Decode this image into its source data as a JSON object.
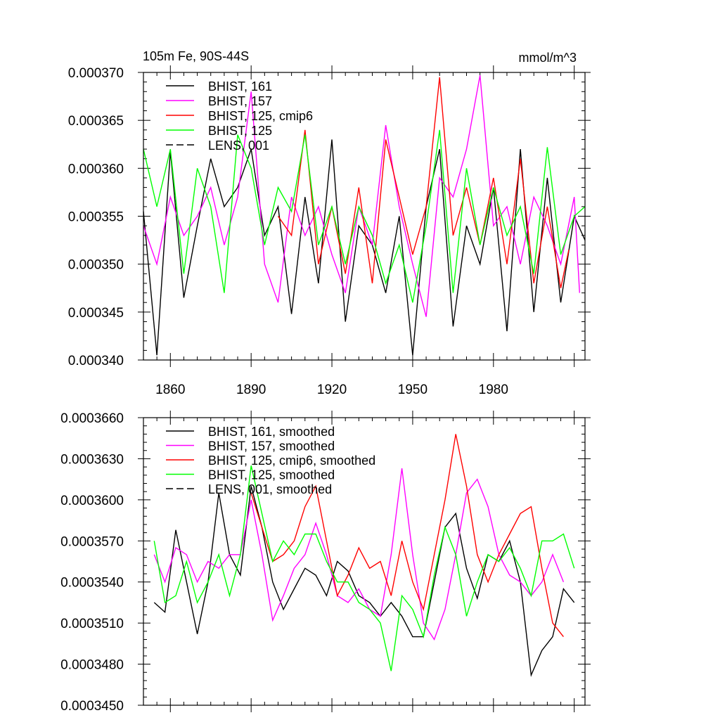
{
  "chart_data": [
    {
      "type": "line",
      "title": "105m Fe, 90S-44S",
      "units": "mmol/m^3",
      "xlabel": "",
      "ylabel": "",
      "xlim": [
        1850,
        2014
      ],
      "ylim": [
        0.00034,
        0.00037
      ],
      "x_ticks": [
        1860,
        1890,
        1920,
        1950,
        1980
      ],
      "x_tick_labels": [
        "1860",
        "1890",
        "1920",
        "1950",
        "1980"
      ],
      "y_ticks": [
        0.00034,
        0.000345,
        0.00035,
        0.000355,
        0.00036,
        0.000365,
        0.00037
      ],
      "y_tick_labels": [
        "0.000340",
        "0.000345",
        "0.000350",
        "0.000355",
        "0.000360",
        "0.000365",
        "0.000370"
      ],
      "legend_position": "top-left",
      "series": [
        {
          "name": "BHIST, 161",
          "color": "#000000",
          "dash": "solid",
          "x": [
            1850,
            1855,
            1860,
            1865,
            1870,
            1875,
            1880,
            1885,
            1890,
            1895,
            1900,
            1905,
            1910,
            1915,
            1920,
            1925,
            1930,
            1935,
            1940,
            1945,
            1950,
            1955,
            1960,
            1965,
            1970,
            1975,
            1980,
            1985,
            1990,
            1995,
            2000,
            2005,
            2010,
            2014
          ],
          "values": [
            0.0003555,
            0.0003405,
            0.0003618,
            0.0003465,
            0.000354,
            0.000361,
            0.000356,
            0.000358,
            0.000362,
            0.000353,
            0.000356,
            0.0003448,
            0.000357,
            0.000348,
            0.000363,
            0.000344,
            0.000354,
            0.000352,
            0.000347,
            0.000355,
            0.0003405,
            0.000356,
            0.000362,
            0.0003435,
            0.000354,
            0.00035,
            0.000358,
            0.000343,
            0.000362,
            0.000345,
            0.000359,
            0.000346,
            0.000355,
            0.0003525
          ]
        },
        {
          "name": "BHIST, 157",
          "color": "#ff00ff",
          "dash": "solid",
          "x": [
            1850,
            1855,
            1860,
            1865,
            1870,
            1875,
            1880,
            1885,
            1890,
            1895,
            1900,
            1905,
            1910,
            1915,
            1920,
            1925,
            1930,
            1935,
            1940,
            1945,
            1950,
            1955,
            1960,
            1965,
            1970,
            1975,
            1980,
            1985,
            1990,
            1995,
            2000,
            2005,
            2010,
            2012
          ],
          "values": [
            0.000354,
            0.00035,
            0.000357,
            0.000353,
            0.000355,
            0.000358,
            0.000352,
            0.000357,
            0.000368,
            0.00035,
            0.000346,
            0.000357,
            0.000353,
            0.000356,
            0.000351,
            0.000347,
            0.000356,
            0.000352,
            0.0003645,
            0.000356,
            0.00035,
            0.0003445,
            0.000359,
            0.000357,
            0.000362,
            0.0003697,
            0.000354,
            0.000356,
            0.00035,
            0.000357,
            0.000354,
            0.00035,
            0.000357,
            0.000347
          ]
        },
        {
          "name": "BHIST, 125, cmip6",
          "color": "#ff0000",
          "dash": "solid",
          "x": [
            1900,
            1905,
            1910,
            1915,
            1920,
            1925,
            1930,
            1935,
            1940,
            1945,
            1950,
            1955,
            1960,
            1965,
            1970,
            1975,
            1980,
            1985,
            1990,
            1995,
            2000,
            2005,
            2008
          ],
          "values": [
            0.000355,
            0.000353,
            0.000364,
            0.00035,
            0.000356,
            0.000349,
            0.000358,
            0.000348,
            0.000363,
            0.000357,
            0.000351,
            0.000356,
            0.0003695,
            0.000353,
            0.000358,
            0.000352,
            0.000359,
            0.00035,
            0.000361,
            0.000348,
            0.000356,
            0.0003475,
            0.0003515
          ]
        },
        {
          "name": "BHIST, 125",
          "color": "#00ff00",
          "dash": "solid",
          "x": [
            1850,
            1855,
            1860,
            1865,
            1870,
            1875,
            1880,
            1885,
            1890,
            1895,
            1900,
            1905,
            1910,
            1915,
            1920,
            1925,
            1930,
            1935,
            1940,
            1945,
            1950,
            1955,
            1960,
            1965,
            1970,
            1975,
            1980,
            1985,
            1990,
            1995,
            2000,
            2005,
            2010,
            2014
          ],
          "values": [
            0.000362,
            0.000356,
            0.000362,
            0.000349,
            0.00036,
            0.000356,
            0.000347,
            0.0003635,
            0.00036,
            0.000352,
            0.000358,
            0.0003555,
            0.0003635,
            0.000352,
            0.000356,
            0.00035,
            0.000356,
            0.000353,
            0.000348,
            0.000352,
            0.000346,
            0.000354,
            0.000364,
            0.000347,
            0.00036,
            0.000352,
            0.000358,
            0.000353,
            0.000356,
            0.000349,
            0.0003622,
            0.000351,
            0.000355,
            0.000356
          ]
        },
        {
          "name": "LENS, 001",
          "color": "#000000",
          "dash": "dashed",
          "x": [],
          "values": []
        }
      ]
    },
    {
      "type": "line",
      "title": "",
      "xlabel": "",
      "ylabel": "",
      "xlim": [
        1850,
        2014
      ],
      "ylim": [
        0.000345,
        0.000366
      ],
      "y_ticks": [
        0.000345,
        0.000348,
        0.000351,
        0.000354,
        0.000357,
        0.00036,
        0.000363,
        0.000366
      ],
      "y_tick_labels": [
        "0.0003450",
        "0.0003480",
        "0.0003510",
        "0.0003540",
        "0.0003570",
        "0.0003600",
        "0.0003630",
        "0.0003660"
      ],
      "legend_position": "top-left",
      "series": [
        {
          "name": "BHIST, 161, smoothed",
          "color": "#000000",
          "dash": "solid",
          "x": [
            1854,
            1858,
            1862,
            1866,
            1870,
            1874,
            1878,
            1882,
            1886,
            1890,
            1894,
            1898,
            1902,
            1906,
            1910,
            1914,
            1918,
            1922,
            1926,
            1930,
            1934,
            1938,
            1942,
            1946,
            1950,
            1954,
            1958,
            1962,
            1966,
            1970,
            1974,
            1978,
            1982,
            1986,
            1990,
            1994,
            1998,
            2002,
            2006,
            2010
          ],
          "values": [
            0.0003525,
            0.0003518,
            0.0003578,
            0.000354,
            0.0003502,
            0.000354,
            0.0003605,
            0.000356,
            0.0003545,
            0.000361,
            0.000358,
            0.000354,
            0.000352,
            0.0003535,
            0.000355,
            0.0003545,
            0.000353,
            0.0003555,
            0.0003548,
            0.000353,
            0.0003525,
            0.0003515,
            0.0003525,
            0.0003515,
            0.00035,
            0.00035,
            0.000354,
            0.000358,
            0.000359,
            0.000355,
            0.0003528,
            0.000356,
            0.0003555,
            0.000357,
            0.000354,
            0.0003472,
            0.000349,
            0.00035,
            0.0003535,
            0.0003525
          ]
        },
        {
          "name": "BHIST, 157, smoothed",
          "color": "#ff00ff",
          "dash": "solid",
          "x": [
            1854,
            1858,
            1862,
            1866,
            1870,
            1874,
            1878,
            1882,
            1886,
            1890,
            1894,
            1898,
            1902,
            1906,
            1910,
            1914,
            1918,
            1922,
            1926,
            1930,
            1934,
            1938,
            1942,
            1946,
            1950,
            1954,
            1958,
            1962,
            1966,
            1970,
            1974,
            1978,
            1982,
            1986,
            1990,
            1994,
            1998,
            2002,
            2006
          ],
          "values": [
            0.000356,
            0.000354,
            0.0003565,
            0.000356,
            0.000354,
            0.0003555,
            0.000355,
            0.000356,
            0.000356,
            0.00036,
            0.000356,
            0.0003512,
            0.000353,
            0.000355,
            0.000356,
            0.0003583,
            0.000356,
            0.000353,
            0.0003525,
            0.0003535,
            0.000352,
            0.0003515,
            0.000356,
            0.0003623,
            0.000356,
            0.000351,
            0.0003498,
            0.000352,
            0.000356,
            0.0003605,
            0.0003615,
            0.0003595,
            0.000356,
            0.0003545,
            0.000354,
            0.000353,
            0.000354,
            0.000356,
            0.000354
          ]
        },
        {
          "name": "BHIST, 125, cmip6, smoothed",
          "color": "#ff0000",
          "dash": "solid",
          "x": [
            1890,
            1894,
            1898,
            1902,
            1906,
            1910,
            1914,
            1918,
            1922,
            1926,
            1930,
            1934,
            1938,
            1942,
            1946,
            1950,
            1954,
            1958,
            1962,
            1966,
            1970,
            1974,
            1978,
            1982,
            1986,
            1990,
            1994,
            1998,
            2002,
            2006
          ],
          "values": [
            0.0003605,
            0.000358,
            0.0003555,
            0.000356,
            0.000357,
            0.0003595,
            0.000361,
            0.000357,
            0.000353,
            0.0003545,
            0.0003565,
            0.000355,
            0.0003555,
            0.000353,
            0.000357,
            0.000354,
            0.000352,
            0.000356,
            0.00036,
            0.0003648,
            0.000361,
            0.000356,
            0.000354,
            0.000356,
            0.0003575,
            0.000359,
            0.0003595,
            0.000355,
            0.000351,
            0.00035
          ]
        },
        {
          "name": "BHIST, 125, smoothed",
          "color": "#00ff00",
          "dash": "solid",
          "x": [
            1854,
            1858,
            1862,
            1866,
            1870,
            1874,
            1878,
            1882,
            1886,
            1890,
            1894,
            1898,
            1902,
            1906,
            1910,
            1914,
            1918,
            1922,
            1926,
            1930,
            1934,
            1938,
            1942,
            1946,
            1950,
            1954,
            1958,
            1962,
            1966,
            1970,
            1974,
            1978,
            1982,
            1986,
            1990,
            1994,
            1998,
            2002,
            2006,
            2010
          ],
          "values": [
            0.000357,
            0.0003525,
            0.000353,
            0.0003555,
            0.0003525,
            0.000354,
            0.000356,
            0.000353,
            0.000356,
            0.0003625,
            0.000359,
            0.0003555,
            0.000357,
            0.000356,
            0.0003575,
            0.0003575,
            0.0003555,
            0.000354,
            0.000354,
            0.0003525,
            0.000352,
            0.000351,
            0.0003475,
            0.000353,
            0.000352,
            0.00035,
            0.0003545,
            0.000358,
            0.000356,
            0.0003515,
            0.000354,
            0.000356,
            0.0003555,
            0.0003565,
            0.000355,
            0.000353,
            0.000357,
            0.000357,
            0.0003575,
            0.000355
          ]
        },
        {
          "name": "LENS, 001, smoothed",
          "color": "#000000",
          "dash": "dashed",
          "x": [],
          "values": []
        }
      ]
    }
  ]
}
